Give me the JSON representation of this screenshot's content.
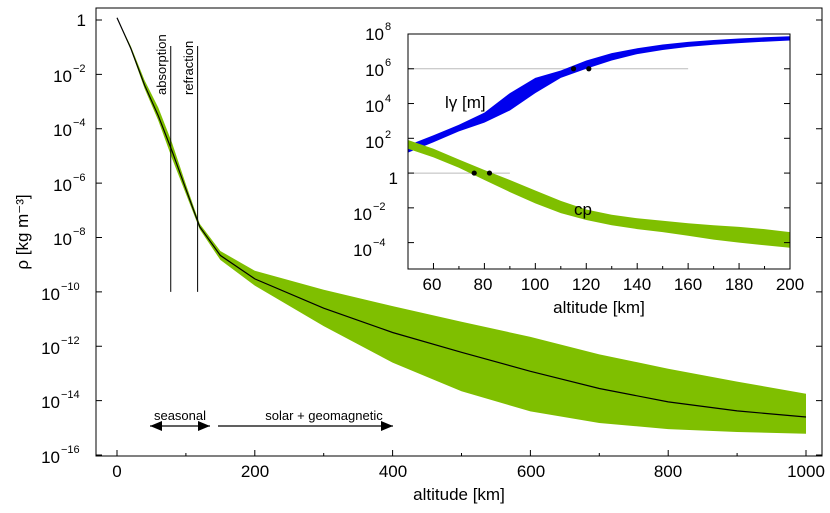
{
  "colors": {
    "band_green": "#7fbf00",
    "band_blue": "#0000ee",
    "line": "#000000",
    "ref_line": "#bbbbbb"
  },
  "chart_data": [
    {
      "type": "area",
      "title": "",
      "xlabel": "altitude [km]",
      "ylabel": "ρ [kg m⁻³]",
      "xlim": [
        0,
        1000
      ],
      "ylim": [
        1e-16,
        1
      ],
      "yscale": "log",
      "grid": false,
      "x_ticks": [
        "0",
        "200",
        "400",
        "600",
        "800",
        "1000"
      ],
      "y_ticks": [
        {
          "base": "1",
          "exp": ""
        },
        {
          "base": "10",
          "exp": "−2"
        },
        {
          "base": "10",
          "exp": "−4"
        },
        {
          "base": "10",
          "exp": "−6"
        },
        {
          "base": "10",
          "exp": "−8"
        },
        {
          "base": "10",
          "exp": "−10"
        },
        {
          "base": "10",
          "exp": "−12"
        },
        {
          "base": "10",
          "exp": "−14"
        },
        {
          "base": "10",
          "exp": "−16"
        }
      ],
      "median_line": {
        "x": [
          0,
          20,
          40,
          60,
          80,
          100,
          120,
          150,
          200,
          300,
          400,
          500,
          600,
          700,
          800,
          900,
          1000
        ],
        "y": [
          1.2,
          0.09,
          0.004,
          0.0003,
          1.5e-05,
          6e-07,
          2.5e-08,
          2.2e-09,
          3e-10,
          2.5e-11,
          3.2e-12,
          6e-13,
          1.2e-13,
          2.8e-14,
          9e-15,
          4.2e-15,
          2.5e-15
        ]
      },
      "variability_band": {
        "x": [
          0,
          20,
          40,
          60,
          80,
          100,
          120,
          150,
          200,
          300,
          400,
          500,
          600,
          700,
          800,
          900,
          1000
        ],
        "upper": [
          1.2,
          0.11,
          0.006,
          0.0006,
          3e-05,
          9e-07,
          3.2e-08,
          3.2e-09,
          6e-10,
          1.2e-10,
          3e-11,
          8e-12,
          2.2e-12,
          5e-13,
          1.5e-13,
          5e-14,
          1.8e-14
        ],
        "lower": [
          1.2,
          0.08,
          0.003,
          0.0002,
          8e-06,
          4e-07,
          2e-08,
          1.5e-09,
          1.7e-10,
          5.5e-12,
          2.5e-13,
          2.2e-14,
          4e-15,
          1.5e-15,
          9e-16,
          7e-16,
          6e-16
        ]
      },
      "vertical_markers": [
        {
          "label": "absorption",
          "x": 78,
          "y_top": 0.3,
          "y_bottom": 1e-10
        },
        {
          "label": "refraction",
          "x": 117,
          "y_top": 0.3,
          "y_bottom": 1e-10
        }
      ],
      "ranges": [
        {
          "label": "seasonal",
          "x_from": 50,
          "x_to": 135,
          "double_headed": true
        },
        {
          "label": "solar + geomagnetic",
          "x_from": 150,
          "x_to": 400,
          "double_headed": false
        }
      ]
    },
    {
      "type": "area",
      "title": "",
      "xlabel": "altitude [km]",
      "ylabel": "",
      "xlim": [
        50,
        200
      ],
      "ylim": [
        1e-05,
        100000000.0
      ],
      "yscale": "log",
      "grid": false,
      "x_ticks": [
        "60",
        "80",
        "100",
        "120",
        "140",
        "160",
        "180",
        "200"
      ],
      "y_ticks": [
        {
          "base": "10",
          "exp": "8"
        },
        {
          "base": "10",
          "exp": "6"
        },
        {
          "base": "10",
          "exp": "4"
        },
        {
          "base": "10",
          "exp": "2"
        },
        {
          "base": "1",
          "exp": ""
        },
        {
          "base": "10",
          "exp": "−2"
        },
        {
          "base": "10",
          "exp": "−4"
        }
      ],
      "series": [
        {
          "name": "lγ [m]",
          "x": [
            50,
            60,
            70,
            80,
            90,
            100,
            110,
            120,
            130,
            140,
            150,
            160,
            170,
            180,
            190,
            200
          ],
          "upper": [
            40,
            150,
            600,
            3000,
            40000,
            300000,
            800000,
            3000000,
            8000000,
            15000000,
            25000000,
            35000000,
            45000000,
            55000000,
            65000000,
            75000000
          ],
          "lower": [
            15,
            60,
            250,
            800,
            4000,
            40000,
            300000,
            1000000,
            3000000,
            7000000,
            12000000,
            18000000,
            24000000,
            30000000,
            36000000,
            42000000
          ]
        },
        {
          "name": "cp",
          "x": [
            50,
            60,
            70,
            80,
            90,
            100,
            110,
            120,
            130,
            140,
            150,
            160,
            170,
            180,
            190,
            200
          ],
          "upper": [
            80,
            25,
            6,
            1.5,
            0.4,
            0.1,
            0.025,
            0.008,
            0.004,
            0.0025,
            0.0018,
            0.0013,
            0.001,
            0.0008,
            0.0006,
            0.0004
          ],
          "lower": [
            25,
            8,
            2,
            0.4,
            0.08,
            0.018,
            0.005,
            0.002,
            0.001,
            0.0006,
            0.0004,
            0.00025,
            0.00015,
            0.0001,
            7e-05,
            5e-05
          ]
        }
      ],
      "reference_lines": [
        {
          "y": 1000000,
          "x_from": 50,
          "x_to": 160,
          "points_x": [
            115,
            121
          ]
        },
        {
          "y": 1,
          "x_from": 50,
          "x_to": 90,
          "points_x": [
            76,
            82
          ]
        }
      ]
    }
  ]
}
